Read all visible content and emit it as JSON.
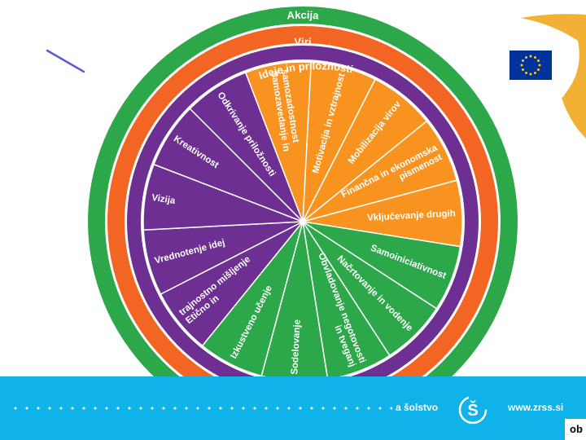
{
  "rings": {
    "outer": {
      "label": "Akcija",
      "color": "#2ca84a"
    },
    "middle": {
      "label": "Viri",
      "color": "#f26522"
    },
    "inner": {
      "label": "Ideje in priložnosti",
      "color": "#6d2f91"
    }
  },
  "segment_colors": {
    "orange": "#f7931e",
    "green": "#2ca84a",
    "purple": "#6d2f91"
  },
  "segments": [
    {
      "label1": "Motivacija in vztrajnost",
      "label2": "",
      "group": "orange"
    },
    {
      "label1": "Mobilizacija virov",
      "label2": "",
      "group": "orange"
    },
    {
      "label1": "Finančna in ekonomska",
      "label2": "pismenost",
      "group": "orange"
    },
    {
      "label1": "Vključevanje drugih",
      "label2": "",
      "group": "orange"
    },
    {
      "label1": "Samoiniciativnost",
      "label2": "",
      "group": "green"
    },
    {
      "label1": "Načrtovanje in vodenje",
      "label2": "",
      "group": "green"
    },
    {
      "label1": "Obvladovanje negotovosti",
      "label2": "in tveganj",
      "group": "green"
    },
    {
      "label1": "Sodelovanje",
      "label2": "",
      "group": "green"
    },
    {
      "label1": "Izkustveno učenje",
      "label2": "",
      "group": "green"
    },
    {
      "label1": "Etično in",
      "label2": "trajnostno mišljenje",
      "group": "purple"
    },
    {
      "label1": "Vrednotenje idej",
      "label2": "",
      "group": "purple"
    },
    {
      "label1": "Vizija",
      "label2": "",
      "group": "purple"
    },
    {
      "label1": "Kreativnost",
      "label2": "",
      "group": "purple"
    },
    {
      "label1": "Odkrivanje priložnosti",
      "label2": "",
      "group": "purple"
    },
    {
      "label1": "Samozavedanje in",
      "label2": "samozadostnost",
      "group": "orange"
    }
  ],
  "footer": {
    "text": "a šolstvo",
    "url": "www.zrss.si",
    "corner": "ob",
    "bar_color": "#0fb3ea"
  },
  "icons": {
    "flag": "eu-flag-icon",
    "logo": "zrss-logo-icon"
  }
}
